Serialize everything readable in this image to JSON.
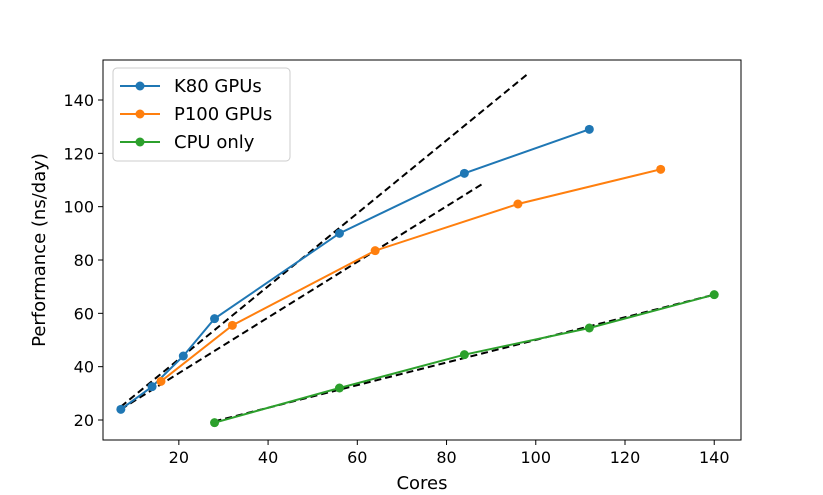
{
  "chart_data": {
    "type": "line",
    "title": "",
    "xlabel": "Cores",
    "ylabel": "Performance (ns/day)",
    "xlim": [
      3,
      146
    ],
    "ylim": [
      12.5,
      155
    ],
    "xticks": [
      20,
      40,
      60,
      80,
      100,
      120,
      140
    ],
    "yticks": [
      20,
      40,
      60,
      80,
      100,
      120,
      140
    ],
    "grid": false,
    "legend_position": "top-left",
    "series": [
      {
        "name": "K80 GPUs",
        "color": "#1f77b4",
        "x": [
          7,
          14,
          21,
          28,
          56,
          84,
          112
        ],
        "y": [
          24,
          32.5,
          44,
          58,
          90,
          112.5,
          129
        ]
      },
      {
        "name": "P100 GPUs",
        "color": "#ff7f0e",
        "x": [
          16,
          32,
          64,
          96,
          128
        ],
        "y": [
          34.5,
          55.5,
          83.5,
          101,
          114
        ]
      },
      {
        "name": "CPU only",
        "color": "#2ca02c",
        "x": [
          28,
          56,
          84,
          112,
          140
        ],
        "y": [
          19,
          32,
          44.5,
          54.5,
          67
        ]
      }
    ],
    "reference_lines": [
      {
        "style": "dashed",
        "color": "#000000",
        "x": [
          7,
          98
        ],
        "y": [
          25,
          149.5
        ]
      },
      {
        "style": "dashed",
        "color": "#000000",
        "x": [
          7,
          88
        ],
        "y": [
          24,
          108.5
        ]
      },
      {
        "style": "dashed",
        "color": "#000000",
        "x": [
          28,
          140
        ],
        "y": [
          19.5,
          67
        ]
      }
    ]
  }
}
